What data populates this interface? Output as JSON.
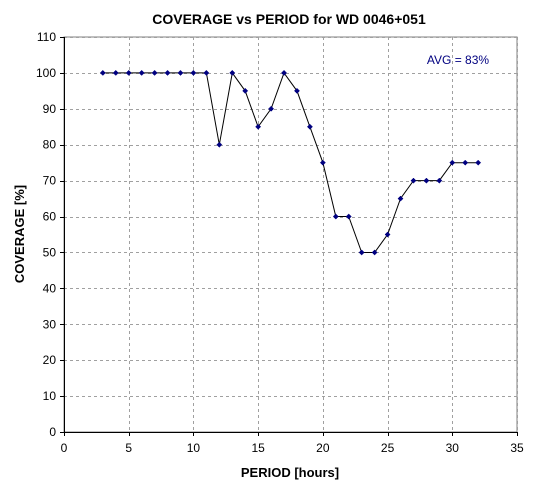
{
  "chart_data": {
    "type": "line",
    "title": "COVERAGE vs PERIOD for WD 0046+051",
    "xlabel": "PERIOD [hours]",
    "ylabel": "COVERAGE [%]",
    "xlim": [
      0,
      35
    ],
    "ylim": [
      0,
      110
    ],
    "xticks": [
      0,
      5,
      10,
      15,
      20,
      25,
      30,
      35
    ],
    "yticks": [
      0,
      10,
      20,
      30,
      40,
      50,
      60,
      70,
      80,
      90,
      100,
      110
    ],
    "grid": true,
    "grid_style": "dashed",
    "legend": false,
    "x": [
      3,
      4,
      5,
      6,
      7,
      8,
      9,
      10,
      11,
      12,
      13,
      14,
      15,
      16,
      17,
      18,
      19,
      20,
      21,
      22,
      23,
      24,
      25,
      26,
      27,
      28,
      29,
      30,
      31,
      32
    ],
    "y": [
      100,
      100,
      100,
      100,
      100,
      100,
      100,
      100,
      100,
      80,
      100,
      95,
      85,
      90,
      100,
      95,
      85,
      75,
      60,
      60,
      50,
      50,
      55,
      65,
      70,
      70,
      70,
      75,
      75,
      75
    ],
    "marker": "diamond",
    "line_color": "#000000",
    "marker_color": "#000080",
    "annotations": [
      {
        "text": "AVG = 83%",
        "color": "#000080"
      }
    ]
  }
}
